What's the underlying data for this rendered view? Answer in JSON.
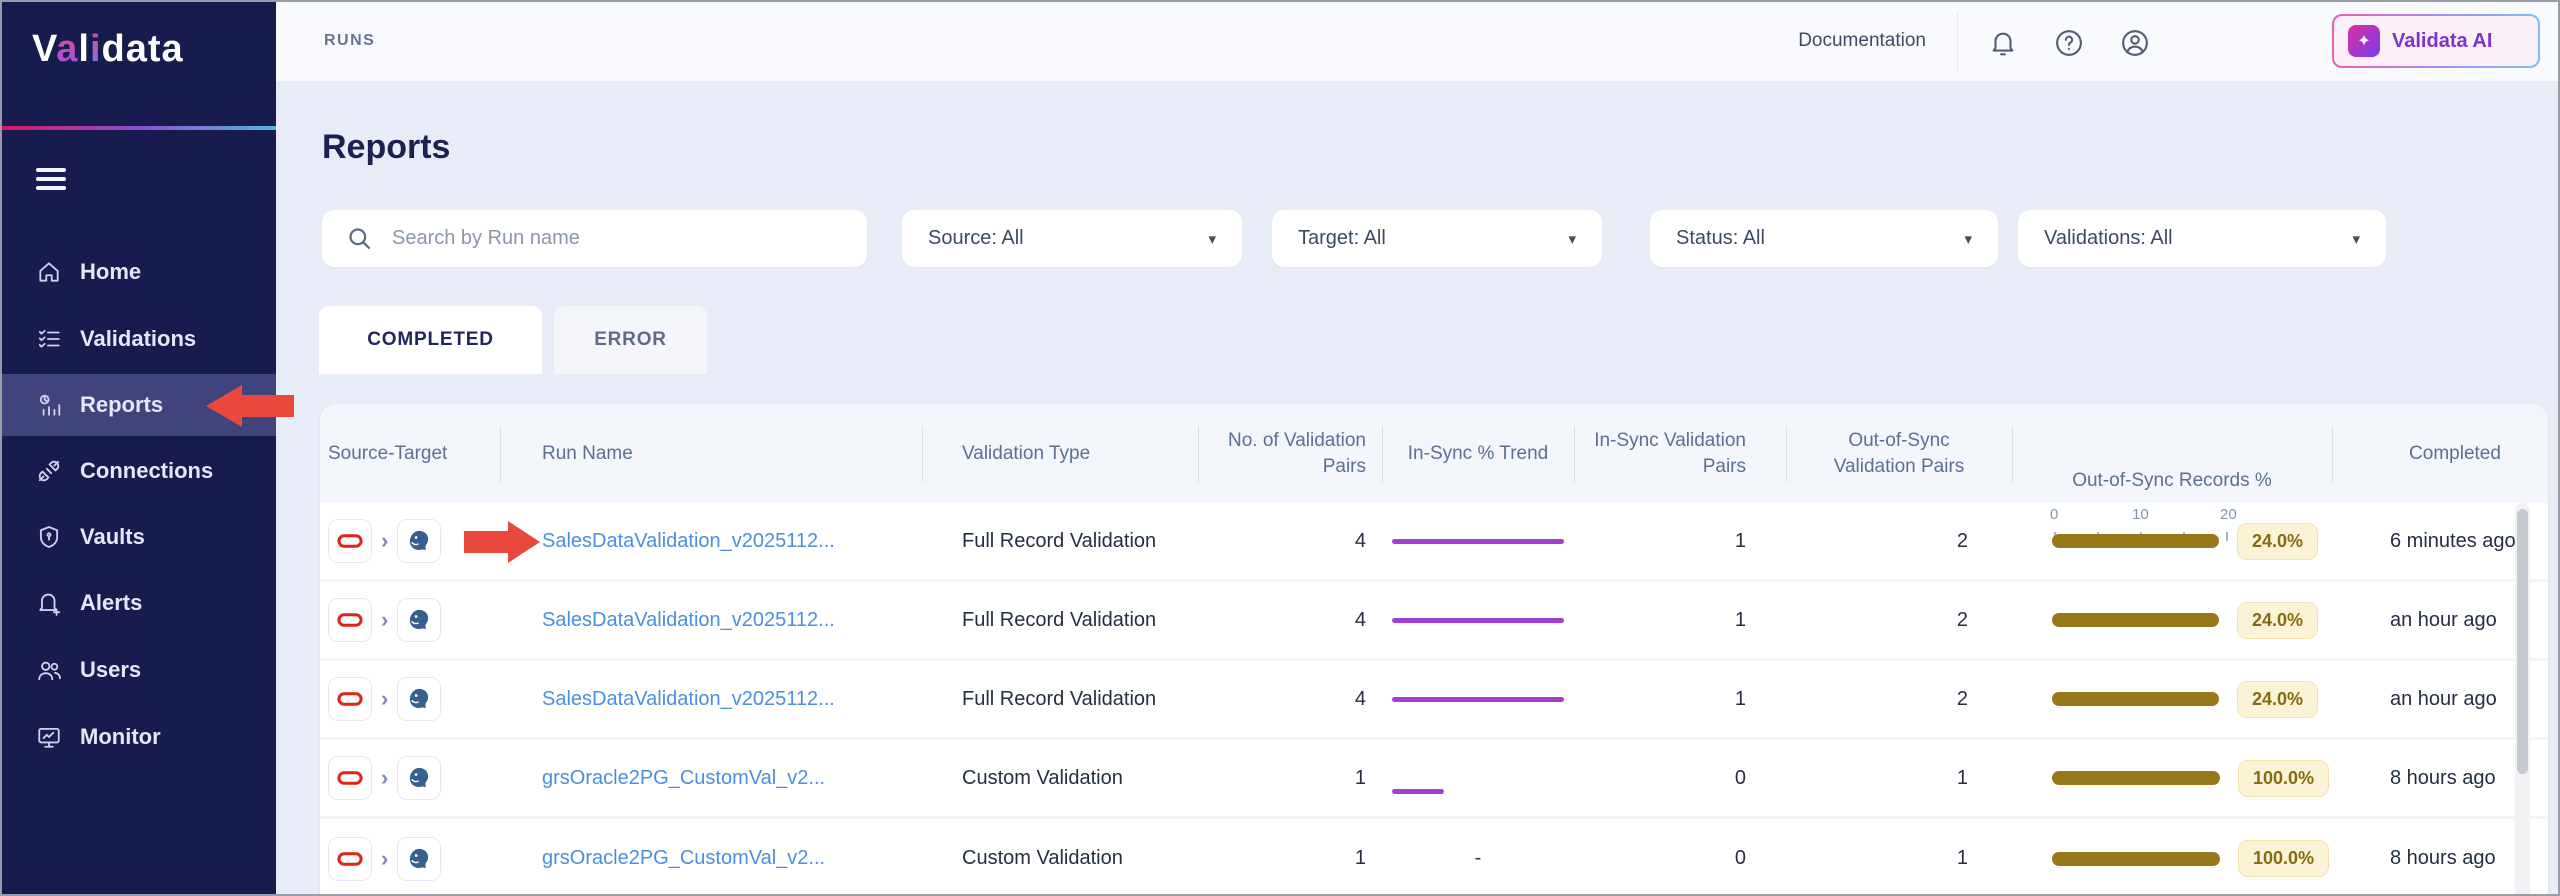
{
  "sidebar": {
    "logo_parts": {
      "p1": "V",
      "p2": "a",
      "p3": "l",
      "p4": "i",
      "p5": "data"
    },
    "items": [
      {
        "label": "Home",
        "icon": "home-icon",
        "selected": false
      },
      {
        "label": "Validations",
        "icon": "validations-icon",
        "selected": false
      },
      {
        "label": "Reports",
        "icon": "reports-icon",
        "selected": true
      },
      {
        "label": "Connections",
        "icon": "connections-icon",
        "selected": false
      },
      {
        "label": "Vaults",
        "icon": "vaults-icon",
        "selected": false
      },
      {
        "label": "Alerts",
        "icon": "alerts-icon",
        "selected": false
      },
      {
        "label": "Users",
        "icon": "users-icon",
        "selected": false
      },
      {
        "label": "Monitor",
        "icon": "monitor-icon",
        "selected": false
      }
    ]
  },
  "topbar": {
    "breadcrumb": "RUNS",
    "documentation_label": "Documentation",
    "ai_button_label": "Validata AI",
    "ai_icon_glyph": "✦"
  },
  "page": {
    "title": "Reports"
  },
  "filters": {
    "search_placeholder": "Search by Run name",
    "source": "Source: All",
    "target": "Target: All",
    "status": "Status: All",
    "validations": "Validations: All",
    "caret": "▾"
  },
  "tabs": {
    "completed": "COMPLETED",
    "error": "ERROR"
  },
  "table": {
    "columns": {
      "source_target": "Source-Target",
      "run_name": "Run Name",
      "validation_type": "Validation Type",
      "no_of_pairs": "No. of Validation Pairs",
      "trend": "In-Sync % Trend",
      "in_sync_pairs": "In-Sync Validation Pairs",
      "out_of_sync_pairs": "Out-of-Sync Validation Pairs",
      "records_pct": "Out-of-Sync Records %",
      "completed": "Completed"
    },
    "records_axis": {
      "tick_labels": [
        "0",
        "10",
        "20"
      ],
      "max": 25
    },
    "source_chevron": "›",
    "rows": [
      {
        "source": "oracle",
        "target": "postgres",
        "run_name": "SalesDataValidation_v2025112...",
        "validation_type": "Full Record Validation",
        "no_of_pairs": "4",
        "trend": "long",
        "in_sync_pairs": "1",
        "out_of_sync_pairs": "2",
        "records_pct": 24.0,
        "records_pct_label": "24.0%",
        "completed": "6 minutes ago",
        "annotated": true
      },
      {
        "source": "oracle",
        "target": "postgres",
        "run_name": "SalesDataValidation_v2025112...",
        "validation_type": "Full Record Validation",
        "no_of_pairs": "4",
        "trend": "long",
        "in_sync_pairs": "1",
        "out_of_sync_pairs": "2",
        "records_pct": 24.0,
        "records_pct_label": "24.0%",
        "completed": "an hour ago",
        "annotated": false
      },
      {
        "source": "oracle",
        "target": "postgres",
        "run_name": "SalesDataValidation_v2025112...",
        "validation_type": "Full Record Validation",
        "no_of_pairs": "4",
        "trend": "long",
        "in_sync_pairs": "1",
        "out_of_sync_pairs": "2",
        "records_pct": 24.0,
        "records_pct_label": "24.0%",
        "completed": "an hour ago",
        "annotated": false
      },
      {
        "source": "oracle",
        "target": "postgres",
        "run_name": "grsOracle2PG_CustomVal_v2...",
        "validation_type": "Custom Validation",
        "no_of_pairs": "1",
        "trend": "short",
        "in_sync_pairs": "0",
        "out_of_sync_pairs": "1",
        "records_pct": 100.0,
        "records_pct_label": "100.0%",
        "completed": "8 hours ago",
        "annotated": false
      },
      {
        "source": "oracle",
        "target": "postgres",
        "run_name": "grsOracle2PG_CustomVal_v2...",
        "validation_type": "Custom Validation",
        "no_of_pairs": "1",
        "trend": "none",
        "in_sync_pairs": "0",
        "out_of_sync_pairs": "1",
        "records_pct": 100.0,
        "records_pct_label": "100.0%",
        "completed": "8 hours ago",
        "annotated": false
      }
    ]
  },
  "colors": {
    "sidebar_bg": "#181b4e",
    "sidebar_selected_bg": "#41447c",
    "brand_gradient": [
      "#d5185e",
      "#8e4fd8",
      "#52b6e2"
    ],
    "link_blue": "#4a8fe0",
    "trend_purple": "#a13fd1",
    "bar_gold": "#97781a",
    "badge_bg": "#fcf3d7",
    "annotation_red": "#e8493c",
    "oracle_red": "#e2231a",
    "postgres_blue": "#35608f",
    "ai_text_purple": "#7b35c9"
  }
}
